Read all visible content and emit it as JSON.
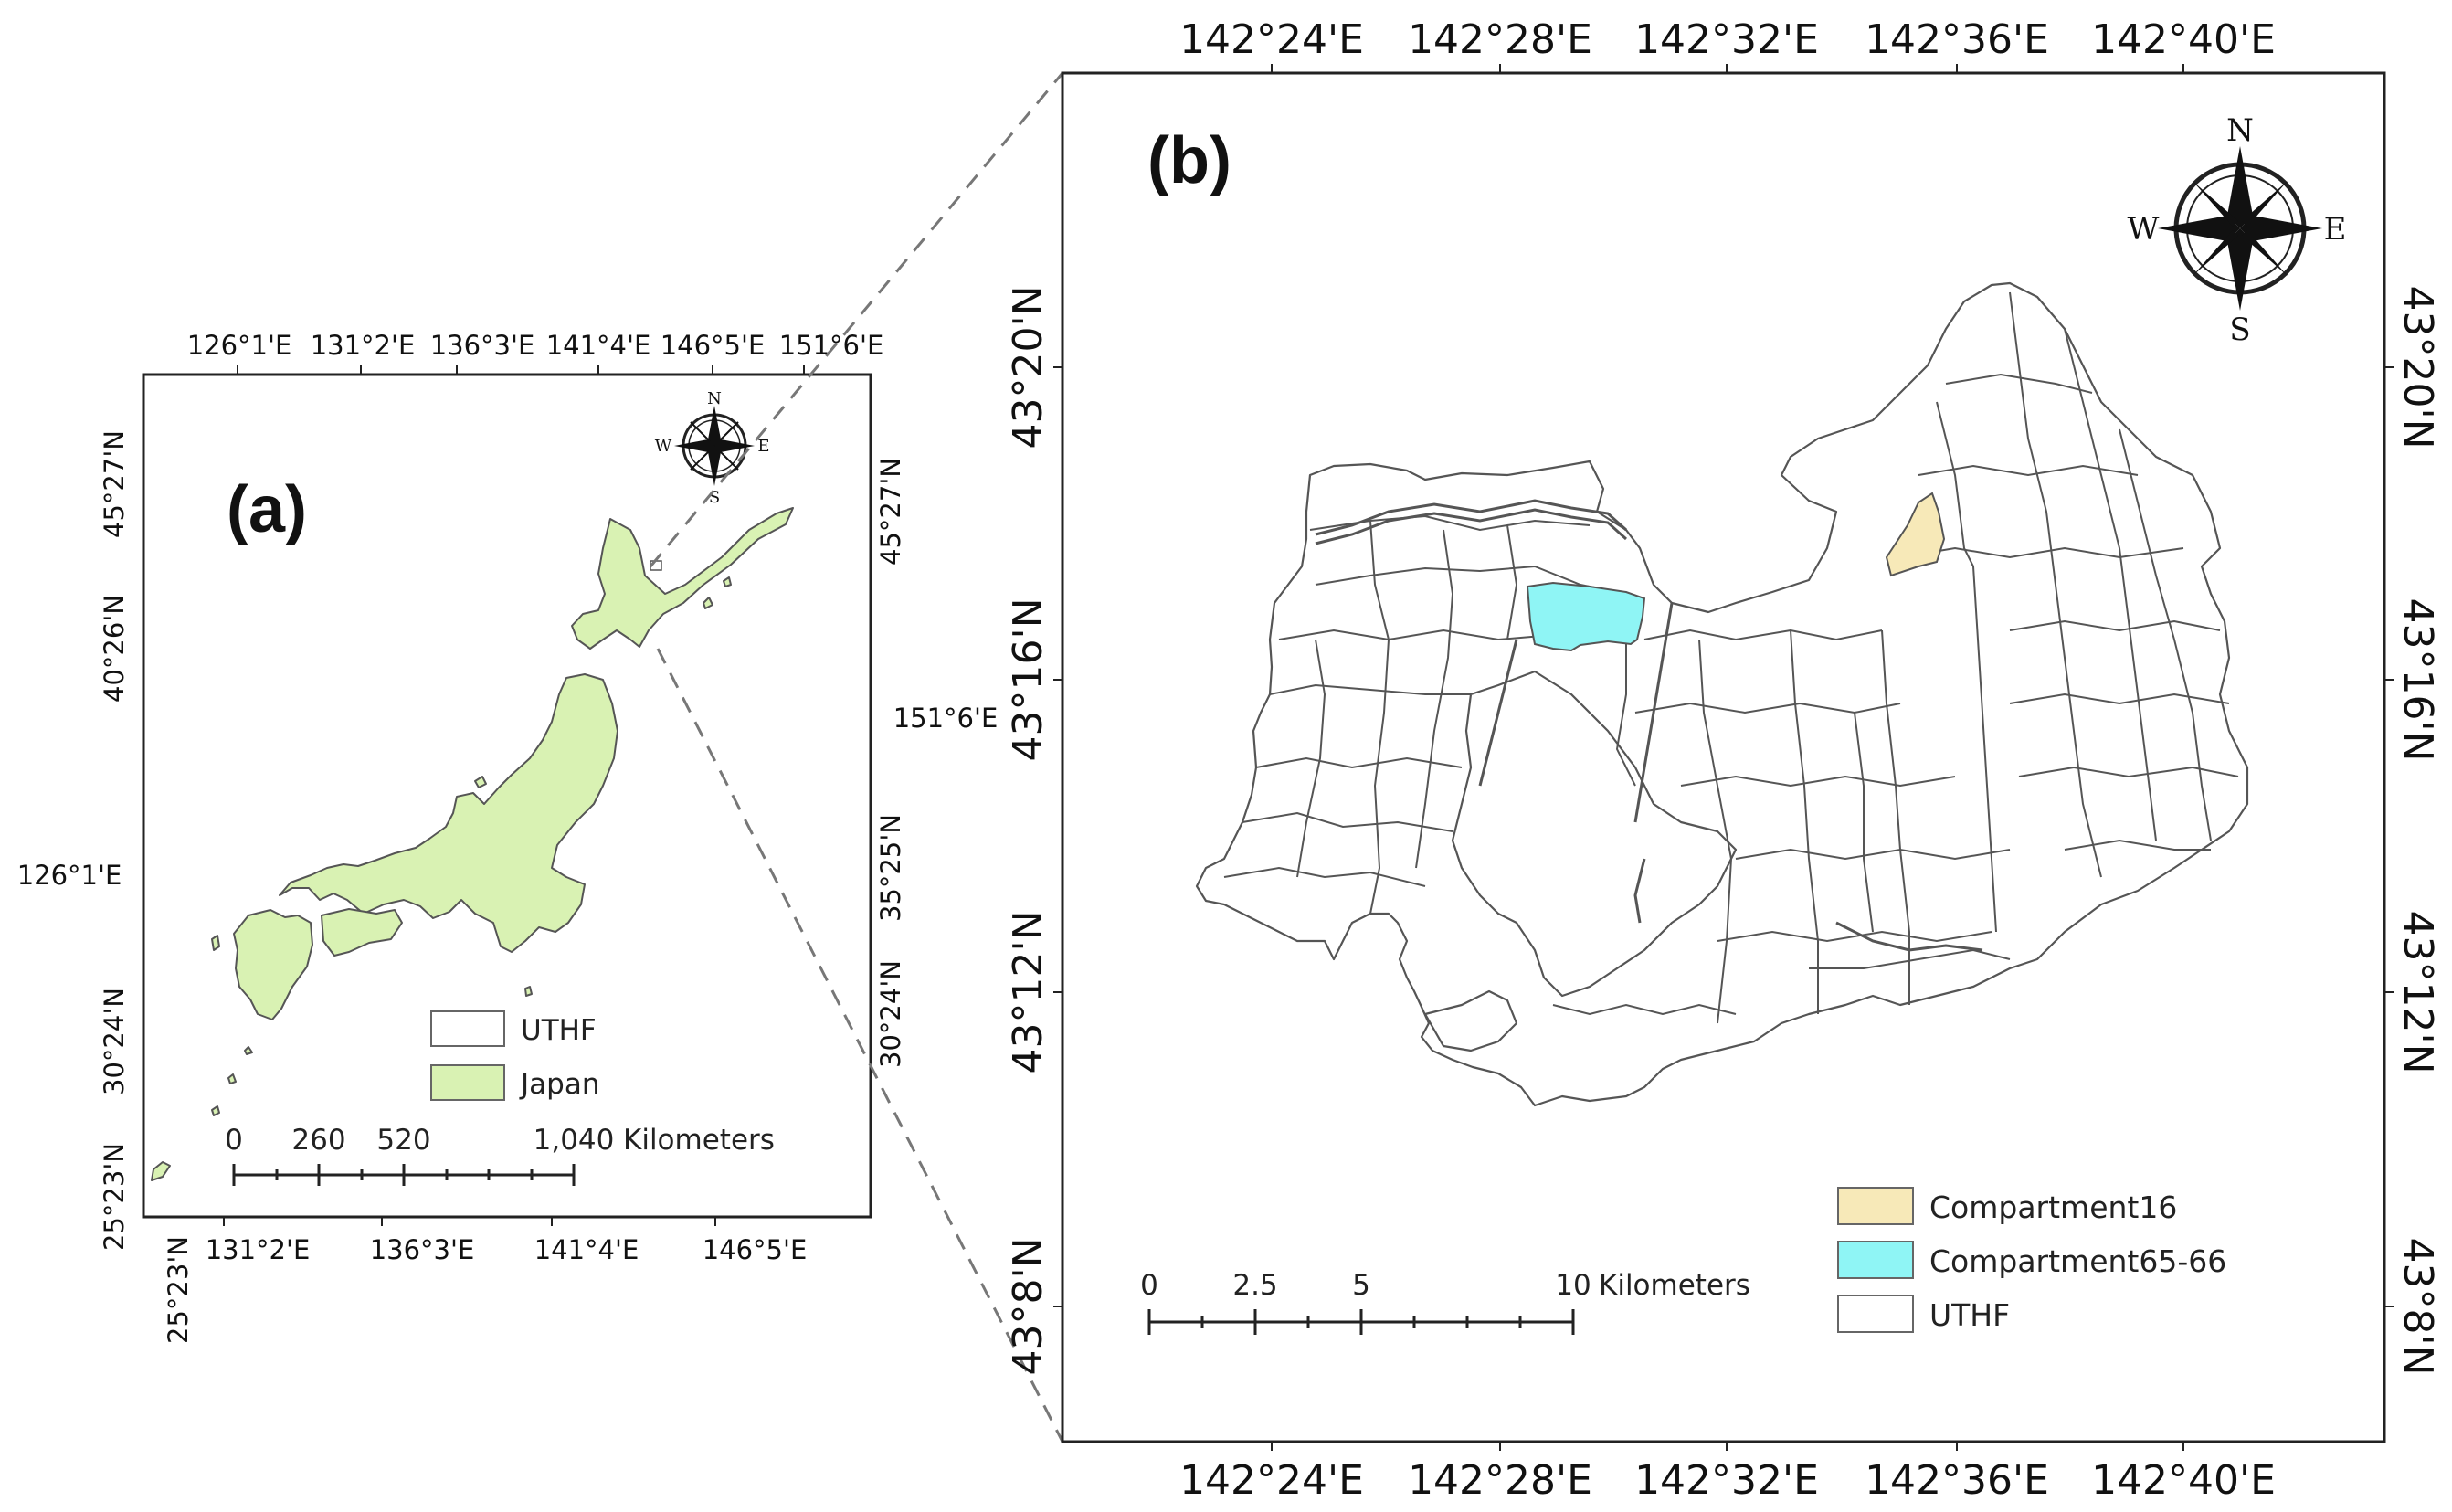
{
  "colors": {
    "japan_fill": "#d9f2b3",
    "compartment16_fill": "#f7e9b8",
    "compartment6566_fill": "#8ff5f5",
    "uthf_fill": "#ffffff",
    "outline": "#555555",
    "frame": "#222222"
  },
  "panel_a": {
    "label": "(a)",
    "top_ticks": [
      "126°1'E",
      "131°2'E",
      "136°3'E",
      "141°4'E",
      "146°5'E",
      "151°6'E"
    ],
    "bottom_ticks": [
      "131°2'E",
      "136°3'E",
      "141°4'E",
      "146°5'E"
    ],
    "left_ticks": [
      "45°27'N",
      "40°26'N",
      "126°1'E",
      "30°24'N",
      "25°23'N"
    ],
    "right_ticks": [
      "45°27'N",
      "151°6'E",
      "35°25'N",
      "30°24'N"
    ],
    "bottom_left_extra": "25°23'N",
    "compass": {
      "n": "N",
      "s": "S",
      "e": "E",
      "w": "W"
    },
    "legend": [
      {
        "label": "UTHF",
        "color_key": "uthf_fill"
      },
      {
        "label": "Japan",
        "color_key": "japan_fill"
      }
    ],
    "scale": {
      "ticks": [
        "0",
        "260",
        "520",
        "1,040"
      ],
      "unit": "Kilometers"
    }
  },
  "panel_b": {
    "label": "(b)",
    "top_ticks": [
      "142°24'E",
      "142°28'E",
      "142°32'E",
      "142°36'E",
      "142°40'E"
    ],
    "bottom_ticks": [
      "142°24'E",
      "142°28'E",
      "142°32'E",
      "142°36'E",
      "142°40'E"
    ],
    "left_ticks": [
      "43°20'N",
      "43°16'N",
      "43°12'N",
      "43°8'N"
    ],
    "right_ticks": [
      "43°20'N",
      "43°16'N",
      "43°12'N",
      "43°8'N"
    ],
    "compass": {
      "n": "N",
      "s": "S",
      "e": "E",
      "w": "W"
    },
    "legend": [
      {
        "label": "Compartment16",
        "color_key": "compartment16_fill"
      },
      {
        "label": "Compartment65-66",
        "color_key": "compartment6566_fill"
      },
      {
        "label": "UTHF",
        "color_key": "uthf_fill"
      }
    ],
    "scale": {
      "ticks": [
        "0",
        "2.5",
        "5",
        "10"
      ],
      "unit": "Kilometers"
    }
  }
}
